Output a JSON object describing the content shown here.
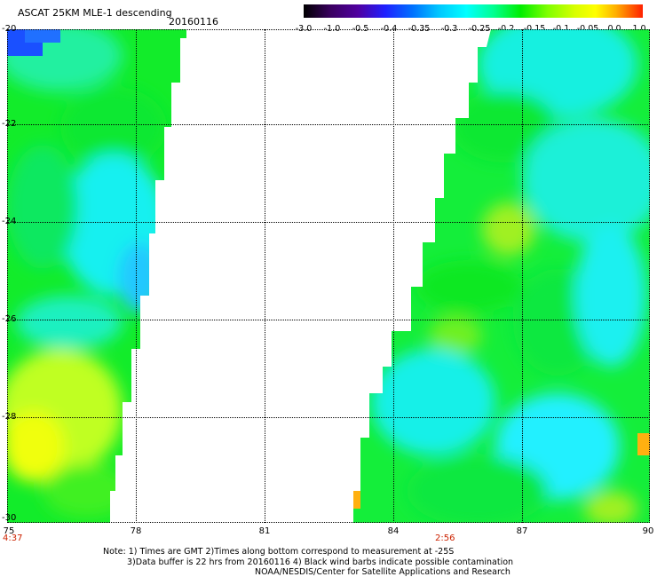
{
  "header": {
    "title": "ASCAT 25KM MLE-1 descending",
    "date": "20160116"
  },
  "colorbar": {
    "ticks": [
      "-3.0",
      "-1.0",
      "-0.5",
      "-0.4",
      "-0.35",
      "-0.3",
      "-0.25",
      "-0.2",
      "-0.15",
      "-0.1",
      "-0.05",
      "0.0",
      "1.0"
    ]
  },
  "axes": {
    "lat_labels": [
      "-20",
      "-22",
      "-24",
      "-26",
      "-28",
      "-30"
    ],
    "lon_labels": [
      "75",
      "78",
      "81",
      "84",
      "87",
      "90"
    ]
  },
  "times": {
    "left": "4:37",
    "right": "2:56"
  },
  "notes": {
    "line1": "Note: 1) Times are GMT 2)Times along bottom correspond to measurement at -25S",
    "line2": "3)Data buffer is 22 hrs from 20160116 4) Black wind barbs indicate possible contamination",
    "line3": "NOAA/NESDIS/Center for Satellite Applications and Research"
  },
  "colors": {
    "background": "#ffffff",
    "time_label": "#cc2200",
    "green": "#10ee10",
    "cyan": "#10f0f0",
    "blue": "#1a40ff",
    "yellow": "#e8ff10"
  }
}
